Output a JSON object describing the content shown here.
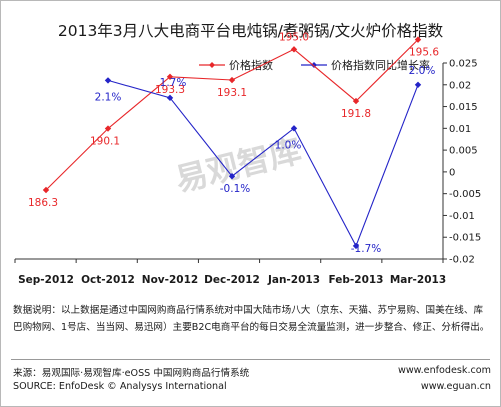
{
  "chart_data": {
    "type": "line",
    "title": "2013年3月八大电商平台电炖锅/煮粥锅/文火炉价格指数",
    "categories": [
      "Sep-2012",
      "Oct-2012",
      "Nov-2012",
      "Dec-2012",
      "Jan-2013",
      "Feb-2013",
      "Mar-2013"
    ],
    "series": [
      {
        "name": "价格指数",
        "axis": "left",
        "color": "#e8272a",
        "values": [
          186.3,
          190.1,
          193.3,
          193.1,
          195.0,
          191.8,
          195.6
        ],
        "labels": [
          "186.3",
          "190.1",
          "193.3",
          "193.1",
          "195.0",
          "191.8",
          "195.6"
        ]
      },
      {
        "name": "价格指数同比增长率",
        "axis": "right",
        "color": "#2424c8",
        "values": [
          null,
          0.021,
          0.017,
          -0.001,
          0.01,
          -0.017,
          0.02
        ],
        "labels": [
          "",
          "2.1%",
          "1.7%",
          "-0.1%",
          "1.0%",
          "-1.7%",
          "2.0%"
        ]
      }
    ],
    "y2_ticks": [
      "0.025",
      "0.02",
      "0.015",
      "0.01",
      "0.005",
      "0",
      "-0.005",
      "-0.01",
      "-0.015",
      "-0.02"
    ],
    "y2lim": [
      -0.02,
      0.025
    ],
    "grid": false,
    "legend": "top-center"
  },
  "watermark": "易观智库",
  "note": "数据说明：以上数据是通过中国网购商品行情系统对中国大陆市场八大（京东、天猫、苏宁易购、国美在线、库巴购物网、1号店、当当网、易迅网）主要B2C电商平台的每日交易全流量监测，进一步整合、修正、分析得出。",
  "source": {
    "line1": "来源：易观国际·易观智库·eOSS 中国网购商品行情系统",
    "line1_right": "www.enfodesk.com",
    "line2": "SOURCE: EnfoDesk © Analysys International",
    "line2_right": "www.eguan.cn"
  }
}
